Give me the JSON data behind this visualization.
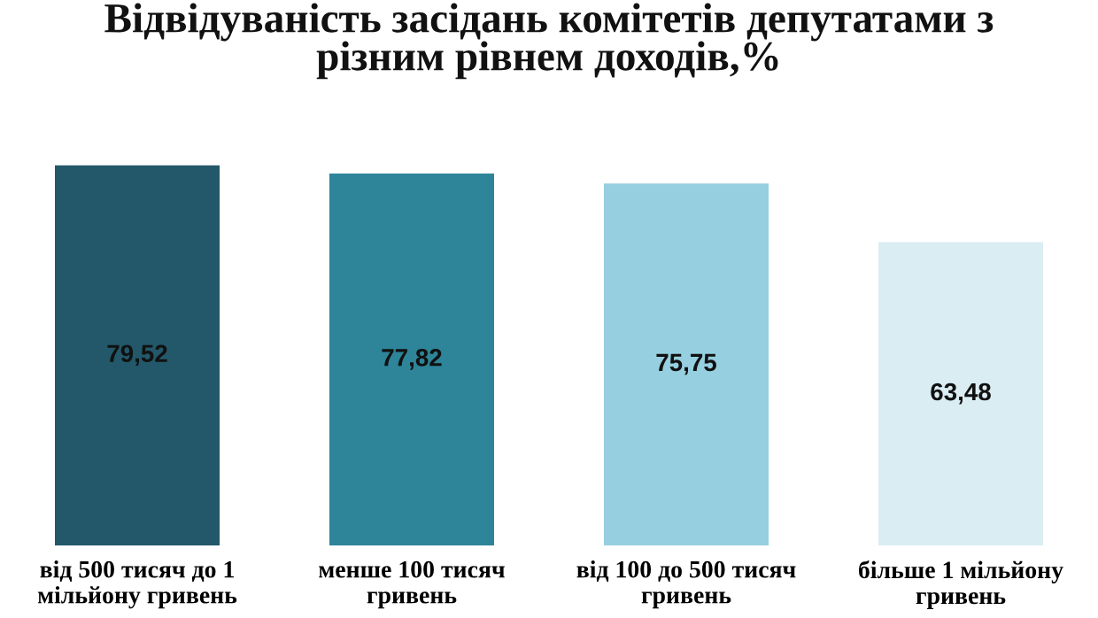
{
  "chart_data": {
    "type": "bar",
    "title": "Відвідуваність засідань комітетів депутатами з\nрізним рівнем доходів,%",
    "categories": [
      "від 500 тисяч до 1\nмільйону гривень",
      "менше 100 тисяч\nгривень",
      "від 100 до 500 тисяч\nгривень",
      "більше 1 мільйону\nгривень"
    ],
    "values": [
      79.52,
      77.82,
      75.75,
      63.48
    ],
    "value_labels": [
      "79,52",
      "77,82",
      "75,75",
      "63,48"
    ],
    "colors": [
      "#22586a",
      "#2e8499",
      "#96cfdf",
      "#daedf3"
    ],
    "ylim": [
      0,
      80
    ],
    "grid": false,
    "legend": false
  }
}
